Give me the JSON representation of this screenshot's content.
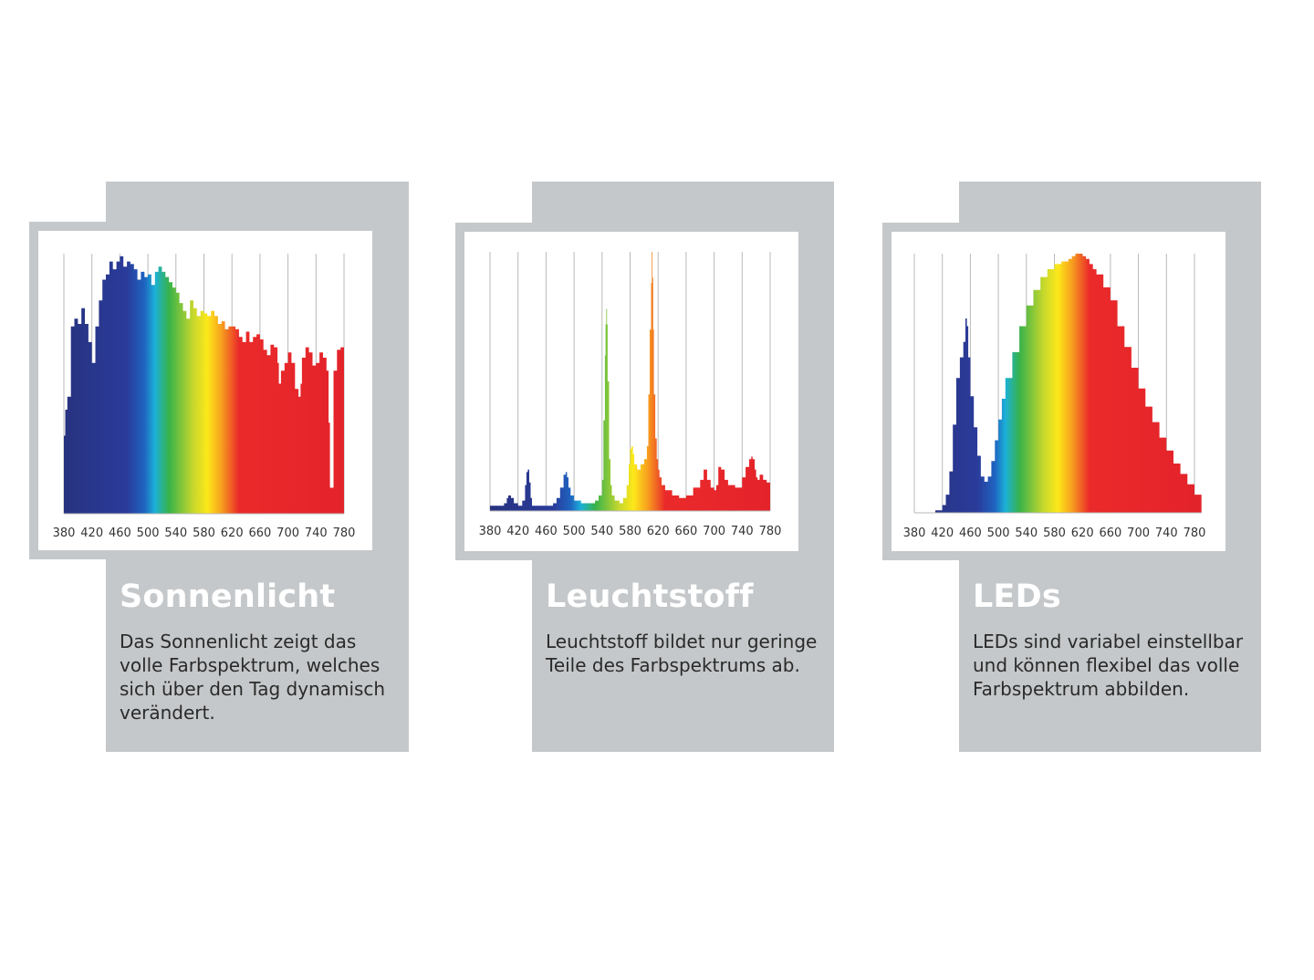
{
  "colors": {
    "card_background": "#c5c8ca",
    "title": "#ffffff",
    "body_text": "#2a2a2a",
    "gridline": "#b9b9b9",
    "spectrum_stops": [
      {
        "nm": 380,
        "color": "#27327f"
      },
      {
        "nm": 470,
        "color": "#2a3b9a"
      },
      {
        "nm": 495,
        "color": "#1e64c0"
      },
      {
        "nm": 510,
        "color": "#1cb1d8"
      },
      {
        "nm": 530,
        "color": "#37b24a"
      },
      {
        "nm": 565,
        "color": "#c8d82c"
      },
      {
        "nm": 585,
        "color": "#fde81a"
      },
      {
        "nm": 605,
        "color": "#f7a01e"
      },
      {
        "nm": 630,
        "color": "#ea2a2a"
      },
      {
        "nm": 780,
        "color": "#e3232a"
      }
    ]
  },
  "cards": [
    {
      "title": "Sonnenlicht",
      "description": "Das Sonnenlicht zeigt das volle Farbspektrum, welches sich über den Tag dynamisch verändert."
    },
    {
      "title": "Leuchtstoff",
      "description": "Leuchtstoff bildet nur geringe Teile des Farbspektrums ab."
    },
    {
      "title": "LEDs",
      "description": "LEDs sind variabel einstellbar und können flexibel das volle Farbspektrum abbilden."
    }
  ],
  "chart_data": [
    {
      "type": "area",
      "series_label": "Sonnenlicht",
      "x_ticks": [
        "380",
        "420",
        "460",
        "500",
        "540",
        "580",
        "620",
        "660",
        "700",
        "740",
        "780"
      ],
      "xlim": [
        380,
        780
      ],
      "ylim": [
        0,
        100
      ],
      "grid": true,
      "x": [
        380,
        382,
        385,
        390,
        395,
        400,
        405,
        410,
        415,
        420,
        425,
        430,
        435,
        440,
        445,
        450,
        455,
        460,
        465,
        470,
        475,
        480,
        485,
        490,
        495,
        500,
        505,
        510,
        515,
        520,
        525,
        530,
        535,
        540,
        545,
        550,
        555,
        560,
        565,
        570,
        575,
        580,
        585,
        590,
        595,
        600,
        605,
        610,
        615,
        620,
        625,
        630,
        635,
        640,
        645,
        650,
        655,
        660,
        665,
        670,
        675,
        680,
        685,
        687,
        690,
        695,
        700,
        705,
        710,
        715,
        718,
        720,
        725,
        730,
        735,
        740,
        745,
        750,
        755,
        758,
        760,
        765,
        770,
        775,
        780
      ],
      "y": [
        30,
        40,
        45,
        72,
        75,
        73,
        79,
        73,
        66,
        58,
        72,
        82,
        90,
        92,
        97,
        94,
        97,
        99,
        95,
        97,
        96,
        94,
        90,
        93,
        91,
        92,
        88,
        93,
        95,
        93,
        91,
        89,
        87,
        85,
        81,
        78,
        75,
        82,
        79,
        76,
        78,
        77,
        76,
        78,
        76,
        73,
        74,
        71,
        72,
        72,
        71,
        68,
        66,
        70,
        66,
        68,
        69,
        67,
        63,
        61,
        65,
        64,
        58,
        50,
        55,
        58,
        62,
        58,
        48,
        45,
        50,
        60,
        64,
        62,
        57,
        58,
        62,
        60,
        55,
        35,
        10,
        55,
        63,
        64,
        62
      ]
    },
    {
      "type": "area",
      "series_label": "Leuchtstoff",
      "x_ticks": [
        "380",
        "420",
        "460",
        "500",
        "540",
        "580",
        "620",
        "660",
        "700",
        "740",
        "780"
      ],
      "xlim": [
        380,
        780
      ],
      "ylim": [
        0,
        100
      ],
      "grid": true,
      "x": [
        380,
        390,
        400,
        404,
        406,
        410,
        414,
        420,
        426,
        430,
        432,
        434,
        436,
        438,
        440,
        450,
        460,
        470,
        475,
        480,
        485,
        488,
        490,
        492,
        495,
        500,
        510,
        520,
        530,
        535,
        540,
        542,
        544,
        545,
        546,
        547,
        548,
        550,
        552,
        554,
        558,
        565,
        570,
        575,
        578,
        580,
        582,
        584,
        586,
        590,
        595,
        600,
        604,
        606,
        608,
        610,
        611,
        612,
        613,
        614,
        616,
        618,
        620,
        622,
        625,
        630,
        640,
        650,
        660,
        670,
        680,
        685,
        690,
        695,
        700,
        703,
        706,
        710,
        715,
        720,
        730,
        740,
        745,
        750,
        753,
        755,
        758,
        760,
        762,
        765,
        770,
        775,
        780
      ],
      "y": [
        2,
        2,
        3,
        5,
        6,
        5,
        3,
        2,
        4,
        10,
        15,
        16,
        11,
        5,
        2,
        2,
        2,
        3,
        5,
        9,
        14,
        15,
        13,
        9,
        6,
        4,
        3,
        3,
        4,
        6,
        12,
        35,
        60,
        72,
        78,
        72,
        50,
        20,
        10,
        6,
        4,
        3,
        5,
        10,
        18,
        24,
        25,
        22,
        18,
        16,
        18,
        20,
        25,
        45,
        70,
        88,
        100,
        90,
        70,
        45,
        28,
        20,
        16,
        13,
        10,
        8,
        6,
        5,
        6,
        9,
        12,
        16,
        12,
        9,
        8,
        10,
        17,
        16,
        12,
        10,
        9,
        13,
        17,
        20,
        21,
        20,
        16,
        13,
        12,
        14,
        12,
        11,
        10
      ]
    },
    {
      "type": "area",
      "series_label": "LEDs",
      "x_ticks": [
        "380",
        "420",
        "460",
        "500",
        "540",
        "580",
        "620",
        "660",
        "700",
        "740",
        "780"
      ],
      "xlim": [
        380,
        790
      ],
      "ylim": [
        0,
        100
      ],
      "grid": true,
      "x": [
        380,
        400,
        410,
        420,
        425,
        430,
        435,
        440,
        445,
        450,
        453,
        455,
        457,
        460,
        465,
        470,
        475,
        480,
        485,
        490,
        495,
        500,
        505,
        510,
        520,
        530,
        540,
        550,
        560,
        570,
        580,
        590,
        600,
        605,
        610,
        615,
        620,
        625,
        630,
        635,
        640,
        650,
        660,
        670,
        680,
        690,
        700,
        710,
        720,
        730,
        740,
        750,
        760,
        770,
        780,
        790
      ],
      "y": [
        0,
        0,
        1,
        3,
        7,
        16,
        34,
        52,
        60,
        66,
        75,
        72,
        60,
        45,
        33,
        22,
        14,
        12,
        14,
        20,
        28,
        36,
        44,
        52,
        62,
        72,
        80,
        86,
        91,
        94,
        96,
        97,
        98,
        99,
        100,
        100,
        99,
        98,
        96,
        94,
        92,
        87,
        82,
        72,
        64,
        56,
        48,
        41,
        35,
        29,
        24,
        19,
        15,
        11,
        7,
        5
      ]
    }
  ]
}
